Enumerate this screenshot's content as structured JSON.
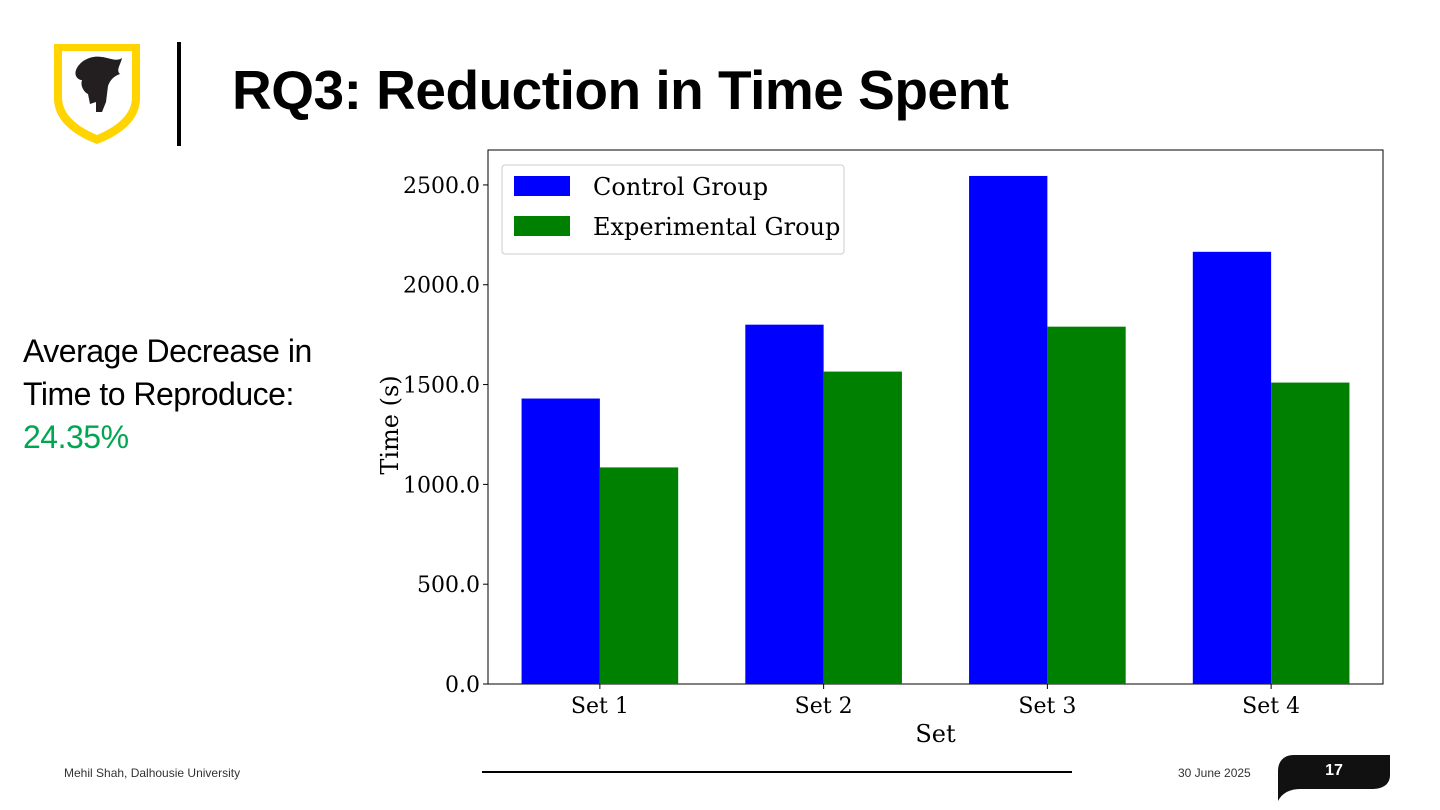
{
  "slide": {
    "title": "RQ3: Reduction in Time Spent",
    "stat_line1": "Average Decrease in",
    "stat_line2": "Time to Reproduce:",
    "stat_value": "24.35%",
    "logo_icon": "dalhousie-shield-icon",
    "accent_color": "#00a651"
  },
  "footer": {
    "author": "Mehil Shah, Dalhousie University",
    "date": "30 June 2025",
    "page_number": "17"
  },
  "chart_data": {
    "type": "bar",
    "categories": [
      "Set 1",
      "Set 2",
      "Set 3",
      "Set 4"
    ],
    "series": [
      {
        "name": "Control Group",
        "color": "#0000ff",
        "values": [
          1430,
          1800,
          2545,
          2165
        ]
      },
      {
        "name": "Experimental Group",
        "color": "#008000",
        "values": [
          1085,
          1565,
          1790,
          1510
        ]
      }
    ],
    "xlabel": "Set",
    "ylabel": "Time (s)",
    "ylim": [
      0,
      2675
    ],
    "yticks": [
      0,
      500,
      1000,
      1500,
      2000,
      2500
    ],
    "ytick_labels": [
      "0.0",
      "500.0",
      "1000.0",
      "1500.0",
      "2000.0",
      "2500.0"
    ],
    "legend_position": "top-left",
    "grid": false
  }
}
